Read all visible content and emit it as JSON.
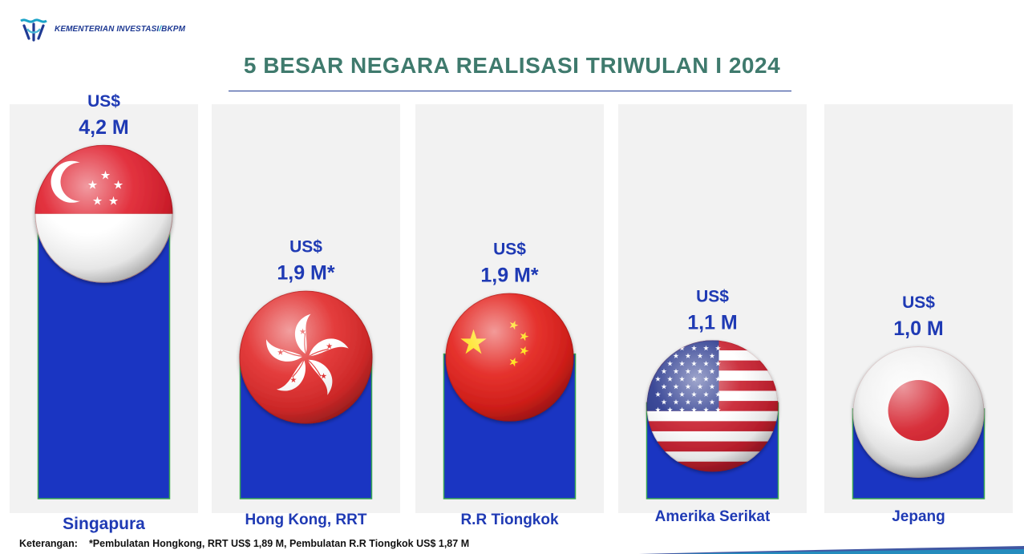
{
  "header": {
    "logo_text": "KEMENTERIAN INVESTASI",
    "logo_sep": "/",
    "logo_text2": "BKPM",
    "title": "5 BESAR NEGARA REALISASI TRIWULAN I 2024"
  },
  "chart_data": {
    "type": "bar",
    "title": "5 BESAR NEGARA REALISASI TRIWULAN I 2024",
    "unit": "US$",
    "categories": [
      "Singapura",
      "Hong Kong, RRT",
      "R.R Tiongkok",
      "Amerika Serikat",
      "Jepang"
    ],
    "values": [
      4.2,
      1.9,
      1.9,
      1.1,
      1.0
    ],
    "value_labels": [
      "4,2 M",
      "1,9 M*",
      "1,9 M*",
      "1,1 M",
      "1,0 M"
    ],
    "flags": [
      "singapore-flag-icon",
      "hong-kong-flag-icon",
      "china-flag-icon",
      "usa-flag-icon",
      "japan-flag-icon"
    ],
    "bar_color": "#1a35c2",
    "label_color": "#1f3ab4",
    "grid": false
  },
  "footnote": {
    "label": "Keterangan:",
    "text": "*Pembulatan  Hongkong, RRT US$  1,89 M, Pembulatan R.R Tiongkok US$ 1,87 M"
  }
}
